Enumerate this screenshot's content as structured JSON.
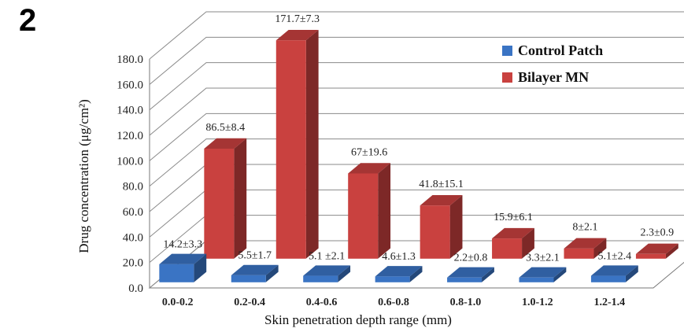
{
  "panel_label": "2",
  "chart_data": {
    "type": "bar",
    "style": "3d-clustered-depth",
    "title": "",
    "xlabel": "Skin penetration  depth range (mm)",
    "ylabel": "Drug concentration  (μg/cm²)",
    "ylim": [
      0,
      180
    ],
    "yticks": [
      "0.0",
      "20.0",
      "40.0",
      "60.0",
      "80.0",
      "100.0",
      "120.0",
      "140.0",
      "160.0",
      "180.0"
    ],
    "grid": true,
    "legend_position": "top-right",
    "categories": [
      "0.0-0.2",
      "0.2-0.4",
      "0.4-0.6",
      "0.6-0.8",
      "0.8-1.0",
      "1.0-1.2",
      "1.2-1.4"
    ],
    "series": [
      {
        "name": "Control Patch",
        "color": "#3a74c4",
        "values": [
          14.2,
          5.5,
          5.1,
          4.6,
          2.2,
          3.3,
          5.1
        ],
        "labels": [
          "14.2±3.3",
          "5.5±1.7",
          "5.1 ±2.1",
          "4.6±1.3",
          "2.2±0.8",
          "3.3±2.1",
          "5.1±2.4"
        ]
      },
      {
        "name": "Bilayer MN",
        "color": "#c9413f",
        "values": [
          86.5,
          171.7,
          67,
          41.8,
          15.9,
          8,
          2.3
        ],
        "labels": [
          "86.5±8.4",
          "171.7±7.3",
          "67±19.6",
          "41.8±15.1",
          "15.9±6.1",
          "8±2.1",
          "2.3±0.9"
        ]
      }
    ]
  }
}
